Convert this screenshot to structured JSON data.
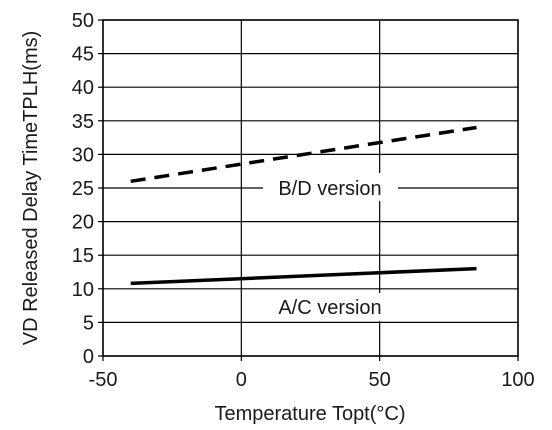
{
  "chart_data": {
    "type": "line",
    "xlabel": "Temperature Topt(°C)",
    "ylabel": "VD Released Delay TimeTPLH(ms)",
    "xlim": [
      -50,
      100
    ],
    "ylim": [
      0,
      50
    ],
    "x_ticks": [
      "-50",
      "0",
      "50",
      "100"
    ],
    "y_ticks": [
      "0",
      "5",
      "10",
      "15",
      "20",
      "25",
      "30",
      "35",
      "40",
      "45",
      "50"
    ],
    "grid": "on",
    "series": [
      {
        "name": "B/D version",
        "style": "dashed",
        "x": [
          -40,
          85
        ],
        "y": [
          26,
          34
        ]
      },
      {
        "name": "A/C version",
        "style": "solid",
        "x": [
          -40,
          85
        ],
        "y": [
          10.8,
          13.0
        ]
      }
    ]
  }
}
